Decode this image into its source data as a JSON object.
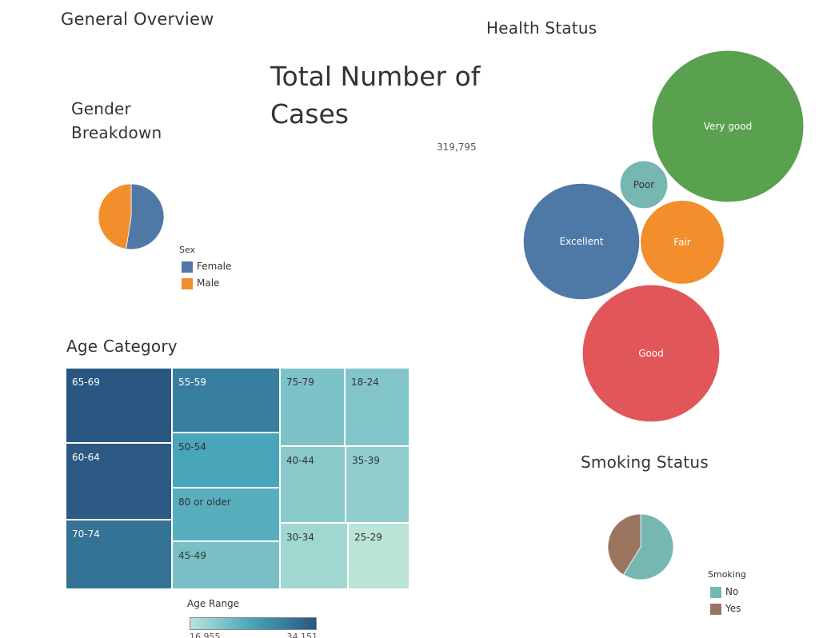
{
  "overview": {
    "title": "General Overview"
  },
  "total": {
    "title": "Total Number of Cases",
    "value": "319,795"
  },
  "colors": {
    "blue": "#4e79a7",
    "orange": "#f28e2b",
    "green": "#59a14f",
    "red": "#e15759",
    "teal": "#76b7b2",
    "brown": "#9c755f"
  },
  "chart_data": [
    {
      "id": "gender",
      "type": "pie",
      "title": "Gender Breakdown",
      "legend_title": "Sex",
      "legend_position": "bottom-right",
      "slices": [
        {
          "label": "Female",
          "value": 52.5,
          "color": "#4e79a7"
        },
        {
          "label": "Male",
          "value": 47.5,
          "color": "#f28e2b"
        }
      ]
    },
    {
      "id": "health",
      "type": "bubble",
      "title": "Health Status",
      "series": [
        {
          "label": "Very good",
          "value": 113858,
          "color": "#59a14f"
        },
        {
          "label": "Good",
          "value": 93129,
          "color": "#e15759"
        },
        {
          "label": "Excellent",
          "value": 66842,
          "color": "#4e79a7"
        },
        {
          "label": "Fair",
          "value": 34659,
          "color": "#f28e2b"
        },
        {
          "label": "Poor",
          "value": 11289,
          "color": "#76b7b2"
        }
      ]
    },
    {
      "id": "age",
      "type": "heatmap",
      "subtype": "treemap",
      "title": "Age Category",
      "color_legend_title": "Age Range",
      "color_range": [
        "16,955",
        "34,151"
      ],
      "color_min": 16955,
      "color_max": 34151,
      "categories": [
        "65-69",
        "60-64",
        "70-74",
        "55-59",
        "50-54",
        "80 or older",
        "45-49",
        "75-79",
        "18-24",
        "40-44",
        "35-39",
        "30-34",
        "25-29"
      ],
      "values": [
        34151,
        33686,
        31065,
        29757,
        25382,
        24153,
        21791,
        21482,
        21064,
        20550,
        20037,
        18753,
        16955
      ]
    },
    {
      "id": "smoking",
      "type": "pie",
      "title": "Smoking Status",
      "legend_title": "Smoking",
      "legend_position": "bottom-right",
      "slices": [
        {
          "label": "No",
          "value": 58.8,
          "color": "#76b7b2"
        },
        {
          "label": "Yes",
          "value": 41.2,
          "color": "#9c755f"
        }
      ]
    }
  ]
}
